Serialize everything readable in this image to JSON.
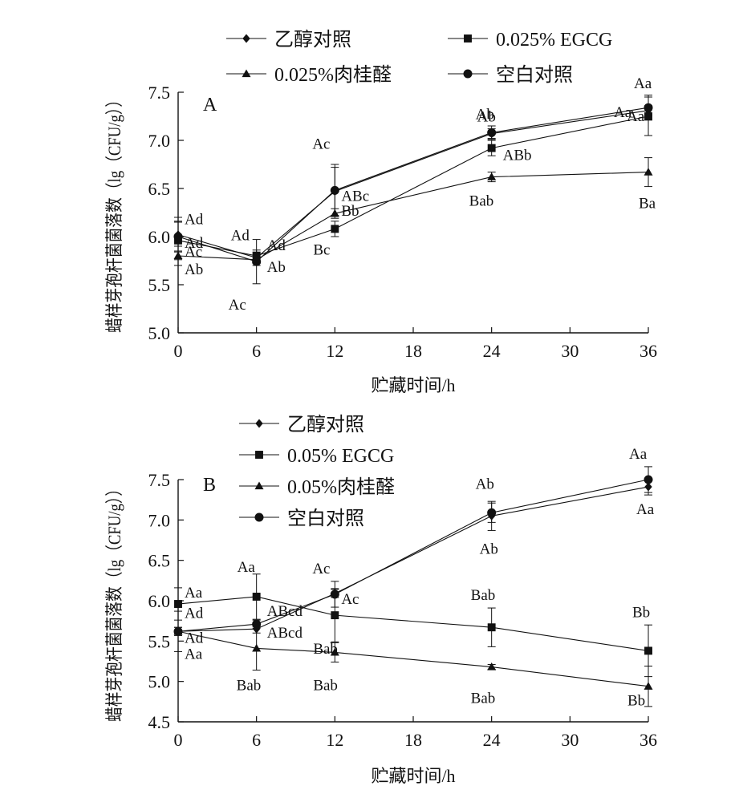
{
  "chart_data": [
    {
      "type": "line",
      "panel_label": "A",
      "xlabel": "贮藏时间/h",
      "ylabel": "蜡样芽孢杆菌菌落数（lg（CFU/g））",
      "xlim": [
        0,
        36
      ],
      "ylim": [
        5.0,
        7.5
      ],
      "xticks": [
        0,
        6,
        12,
        18,
        24,
        30,
        36
      ],
      "yticks": [
        5.0,
        5.5,
        6.0,
        6.5,
        7.0,
        7.5
      ],
      "x": [
        0,
        6,
        12,
        24,
        36
      ],
      "grid": false,
      "legend_order": [
        0,
        3,
        1,
        2
      ],
      "series": [
        {
          "name": "乙醇对照",
          "marker": "diamond",
          "values": [
            6.02,
            5.78,
            6.47,
            7.07,
            7.31
          ],
          "errors": [
            0.18,
            0.06,
            0.25,
            0.05,
            0.05
          ],
          "labels": [
            "Ad",
            "Ad",
            "",
            "Ab",
            "Aa"
          ]
        },
        {
          "name": "0.025% EGCG",
          "marker": "square",
          "values": [
            5.96,
            5.8,
            6.08,
            6.92,
            7.25
          ],
          "errors": [
            0.2,
            0.06,
            0.08,
            0.08,
            0.2
          ],
          "labels": [
            "Ad",
            "Ad",
            "Bc",
            "ABb",
            "Aa"
          ]
        },
        {
          "name": "空白对照",
          "marker": "circle",
          "values": [
            6.0,
            5.74,
            6.48,
            7.08,
            7.34
          ],
          "errors": [
            0.15,
            0.23,
            0.27,
            0.07,
            0.13
          ],
          "labels": [
            "Ab",
            "Ac",
            "Ac",
            "Ab",
            "Aa"
          ]
        },
        {
          "name": "0.025%肉桂醛",
          "marker": "triangle",
          "values": [
            5.8,
            5.76,
            6.24,
            6.62,
            6.67
          ],
          "errors": [
            0.1,
            0.06,
            0.05,
            0.05,
            0.15
          ],
          "labels": [
            "Ac",
            "Ab",
            "Bb",
            "Bab",
            "Ba"
          ]
        }
      ],
      "extra_labels": [
        {
          "x": 12,
          "text": "ABc"
        }
      ]
    },
    {
      "type": "line",
      "panel_label": "B",
      "xlabel": "贮藏时间/h",
      "ylabel": "蜡样芽孢杆菌菌落数（lg（CFU/g））",
      "xlim": [
        0,
        36
      ],
      "ylim": [
        4.5,
        7.5
      ],
      "xticks": [
        0,
        6,
        12,
        18,
        24,
        30,
        36
      ],
      "yticks": [
        4.5,
        5.0,
        5.5,
        6.0,
        6.5,
        7.0,
        7.5
      ],
      "x": [
        0,
        6,
        12,
        24,
        36
      ],
      "grid": false,
      "legend_order": [
        0,
        1,
        2,
        3
      ],
      "series": [
        {
          "name": "乙醇对照",
          "marker": "diamond",
          "values": [
            5.62,
            5.65,
            6.09,
            7.05,
            7.41
          ],
          "errors": [
            0.05,
            0.05,
            0.05,
            0.18,
            0.1
          ],
          "labels": [
            "Ad",
            "ABcd",
            "Ac",
            "Ab",
            "Aa"
          ]
        },
        {
          "name": "0.05% EGCG",
          "marker": "square",
          "values": [
            5.96,
            6.05,
            5.82,
            5.67,
            5.38
          ],
          "errors": [
            0.2,
            0.28,
            0.33,
            0.24,
            0.32
          ],
          "labels": [
            "Aa",
            "Aa",
            "Bab",
            "Bab",
            "Bb"
          ]
        },
        {
          "name": "0.05%肉桂醛",
          "marker": "triangle",
          "values": [
            5.62,
            5.41,
            5.36,
            5.18,
            4.94
          ],
          "errors": [
            0.25,
            0.27,
            0.12,
            0.03,
            0.25
          ],
          "labels": [
            "Aa",
            "Bab",
            "Bab",
            "Bab",
            "Bb"
          ]
        },
        {
          "name": "空白对照",
          "marker": "circle",
          "values": [
            5.62,
            5.71,
            6.08,
            7.09,
            7.5
          ],
          "errors": [
            0.05,
            0.05,
            0.16,
            0.12,
            0.16
          ],
          "labels": [
            "Ad",
            "ABcd",
            "Ac",
            "Ab",
            "Aa"
          ]
        }
      ]
    }
  ]
}
